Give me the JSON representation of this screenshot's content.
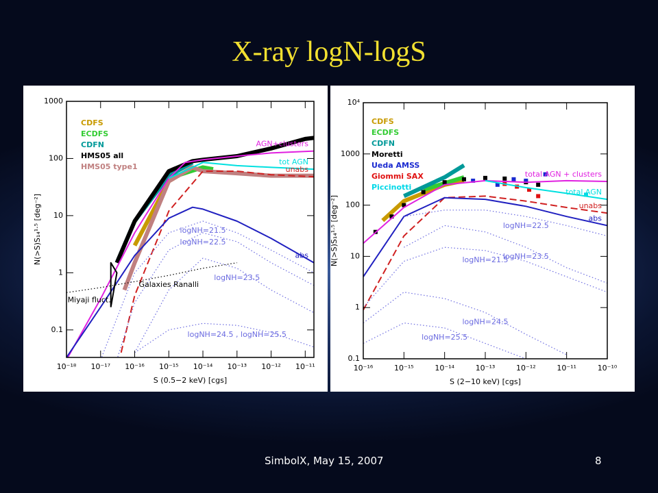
{
  "slide": {
    "title": "X-ray logN-logS",
    "footer": "SimbolX, May 15, 2007",
    "page": 8
  },
  "chart_data": [
    {
      "type": "line",
      "xlabel": "S (0.5−2 keV) [cgs]",
      "ylabel": "N(>S)S₁₄¹·⁵ [deg⁻²]",
      "xlog": true,
      "ylog": true,
      "xlim": [
        1e-18,
        1.8e-11
      ],
      "ylim": [
        0.033,
        1000
      ],
      "xticks": [
        {
          "value": 1e-18,
          "label": "10⁻¹⁸"
        },
        {
          "value": 1e-17,
          "label": "10⁻¹⁷"
        },
        {
          "value": 1e-16,
          "label": "10⁻¹⁶"
        },
        {
          "value": 1e-15,
          "label": "10⁻¹⁵"
        },
        {
          "value": 1e-14,
          "label": "10⁻¹⁴"
        },
        {
          "value": 1e-13,
          "label": "10⁻¹³"
        },
        {
          "value": 1e-12,
          "label": "10⁻¹²"
        },
        {
          "value": 1e-11,
          "label": "10⁻¹¹"
        }
      ],
      "yticks": [
        1000,
        100,
        10,
        1,
        0.1
      ],
      "series": [
        {
          "name": "CDFS",
          "color": "#c89a00",
          "style": "thick",
          "legend": true,
          "x": [
            1e-16,
            1e-15,
            5e-15
          ],
          "values": [
            3,
            40,
            70
          ]
        },
        {
          "name": "ECDFS",
          "color": "#33cc33",
          "style": "thick",
          "legend": true,
          "x": [
            1e-15,
            1e-14,
            2e-14
          ],
          "values": [
            45,
            70,
            65
          ]
        },
        {
          "name": "CDFN",
          "color": "#009999",
          "style": "thick",
          "legend": true,
          "x": [
            3e-17,
            1e-16,
            1e-15,
            5e-15
          ],
          "values": [
            1.5,
            8,
            50,
            85
          ]
        },
        {
          "name": "HMS05 all",
          "color": "#000000",
          "style": "thick",
          "legend": true,
          "x": [
            3e-17,
            1e-16,
            1e-15,
            5e-15,
            1e-14,
            1e-13,
            1e-12,
            1e-11,
            1.8e-11
          ],
          "values": [
            1.5,
            8,
            60,
            90,
            95,
            110,
            150,
            220,
            230
          ]
        },
        {
          "name": "HMS05 type1",
          "color": "#c08080",
          "style": "thick",
          "legend": true,
          "x": [
            5e-17,
            1e-16,
            1e-15,
            5e-15,
            1e-14,
            1e-13,
            1e-12,
            1.8e-11
          ],
          "values": [
            0.5,
            1.5,
            40,
            70,
            60,
            55,
            50,
            50
          ]
        },
        {
          "name": "AGN+clusters",
          "color": "#e020e0",
          "style": "solid",
          "x": [
            1e-18,
            1e-17,
            1e-16,
            1e-15,
            3e-15,
            1e-14,
            1e-13,
            1e-12,
            1.8e-11
          ],
          "values": [
            0.03,
            0.35,
            5,
            45,
            85,
            95,
            110,
            125,
            135
          ]
        },
        {
          "name": "tot AGN",
          "color": "#00e0e0",
          "style": "solid",
          "x": [
            1e-15,
            1e-14,
            1e-13,
            1e-12,
            1.8e-11
          ],
          "values": [
            45,
            85,
            75,
            70,
            65
          ]
        },
        {
          "name": "unabs",
          "color": "#d02020",
          "style": "dashed",
          "x": [
            4e-17,
            1e-16,
            1e-15,
            1e-14,
            1e-13,
            1e-12,
            1.8e-11
          ],
          "values": [
            0.04,
            0.4,
            12,
            60,
            60,
            52,
            48
          ]
        },
        {
          "name": "abs",
          "color": "#2020c0",
          "style": "solid",
          "x": [
            1e-18,
            1e-17,
            1e-16,
            1e-15,
            5e-15,
            1e-14,
            1e-13,
            1e-12,
            1.8e-11
          ],
          "values": [
            0.033,
            0.25,
            2,
            9,
            14,
            13,
            8,
            4,
            1.5
          ]
        },
        {
          "name": "logNH=21.5",
          "color": "#6a6ae0",
          "style": "dotted",
          "x": [
            1e-17,
            1e-16,
            1e-15,
            1e-14,
            1e-13,
            1e-12,
            1.8e-11
          ],
          "values": [
            0.03,
            1,
            5,
            8,
            5,
            2.5,
            1
          ]
        },
        {
          "name": "logNH=22.5",
          "color": "#6a6ae0",
          "style": "dotted",
          "x": [
            3e-17,
            1e-16,
            1e-15,
            1e-14,
            1e-13,
            1e-12,
            1.8e-11
          ],
          "values": [
            0.03,
            0.3,
            2.5,
            5,
            3.5,
            1.5,
            0.6
          ]
        },
        {
          "name": "logNH=23.5",
          "color": "#6a6ae0",
          "style": "dotted",
          "x": [
            1e-16,
            1e-15,
            1e-14,
            1e-13,
            1e-12,
            1.8e-11
          ],
          "values": [
            0.04,
            0.5,
            1.8,
            1.2,
            0.5,
            0.2
          ]
        },
        {
          "name": "logNH=24.5 , logNH=25.5",
          "color": "#6a6ae0",
          "style": "dotted",
          "x": [
            1e-16,
            1e-15,
            1e-14,
            1e-13,
            1e-12,
            1.8e-11
          ],
          "values": [
            0.04,
            0.1,
            0.13,
            0.12,
            0.09,
            0.05
          ]
        },
        {
          "name": "Galaxies Ranalli",
          "color": "#000000",
          "style": "dotted",
          "x": [
            1e-18,
            1e-17,
            1e-16,
            1e-15,
            1e-14,
            1e-13
          ],
          "values": [
            0.45,
            0.55,
            0.7,
            0.9,
            1.2,
            1.5
          ]
        },
        {
          "name": "Miyaji fluct.",
          "color": "#000000",
          "style": "solid",
          "x": [
            2e-17,
            2e-17,
            3e-17,
            2e-17
          ],
          "values": [
            0.25,
            1.5,
            1,
            0.25
          ]
        }
      ]
    },
    {
      "type": "line",
      "xlabel": "S (2−10 keV) [cgs]",
      "ylabel": "N(>S)S₁₄¹·⁵ [deg⁻²]",
      "xlog": true,
      "ylog": true,
      "xlim": [
        1e-16,
        1e-10
      ],
      "ylim": [
        0.1,
        10000
      ],
      "xticks": [
        {
          "value": 1e-16,
          "label": "10⁻¹⁶"
        },
        {
          "value": 1e-15,
          "label": "10⁻¹⁵"
        },
        {
          "value": 1e-14,
          "label": "10⁻¹⁴"
        },
        {
          "value": 1e-13,
          "label": "10⁻¹³"
        },
        {
          "value": 1e-12,
          "label": "10⁻¹²"
        },
        {
          "value": 1e-11,
          "label": "10⁻¹¹"
        },
        {
          "value": 1e-10,
          "label": "10⁻¹⁰"
        }
      ],
      "yticks": [
        {
          "value": 10000,
          "label": "10⁴"
        },
        1000,
        100,
        10,
        1,
        0.1
      ],
      "series": [
        {
          "name": "CDFS",
          "color": "#c89a00",
          "style": "thick",
          "legend": true,
          "x": [
            3e-16,
            1e-15,
            1e-14,
            3e-14
          ],
          "values": [
            50,
            120,
            250,
            300
          ]
        },
        {
          "name": "ECDFS",
          "color": "#33cc33",
          "style": "thick",
          "legend": true,
          "x": [
            3e-15,
            3e-14
          ],
          "values": [
            200,
            350
          ]
        },
        {
          "name": "CDFN",
          "color": "#009999",
          "style": "thick",
          "legend": true,
          "x": [
            1e-15,
            1e-14,
            3e-14
          ],
          "values": [
            150,
            350,
            600
          ]
        },
        {
          "name": "Moretti",
          "color": "#000000",
          "style": "points",
          "legend": true,
          "x": [
            2e-16,
            5e-16,
            1e-15,
            3e-15,
            1e-14,
            3e-14,
            1e-13,
            3e-13,
            1e-12,
            2e-12
          ],
          "values": [
            30,
            60,
            100,
            180,
            280,
            320,
            340,
            330,
            280,
            250
          ]
        },
        {
          "name": "Ueda AMSS",
          "color": "#1a2ad0",
          "style": "points",
          "legend": true,
          "x": [
            5e-14,
            2e-13,
            5e-13,
            1e-12,
            3e-12
          ],
          "values": [
            300,
            250,
            320,
            300,
            400
          ]
        },
        {
          "name": "Giommi SAX",
          "color": "#e01010",
          "style": "points",
          "legend": true,
          "x": [
            3e-13,
            6e-13,
            1.2e-12,
            2e-12
          ],
          "values": [
            260,
            230,
            200,
            150
          ]
        },
        {
          "name": "Piccinotti",
          "color": "#00d8e8",
          "style": "points",
          "legend": true,
          "x": [
            3e-11
          ],
          "values": [
            160
          ]
        },
        {
          "name": "total AGN + clusters",
          "color": "#e020e0",
          "style": "solid",
          "x": [
            1e-16,
            1e-15,
            1e-14,
            1e-13,
            1e-12,
            1e-11,
            1e-10
          ],
          "values": [
            18,
            90,
            250,
            300,
            280,
            300,
            290
          ]
        },
        {
          "name": "total AGN",
          "color": "#00e0e0",
          "style": "solid",
          "x": [
            1e-13,
            1e-12,
            1e-11,
            1e-10
          ],
          "values": [
            300,
            220,
            170,
            130
          ]
        },
        {
          "name": "unabs",
          "color": "#d02020",
          "style": "dashed",
          "x": [
            1e-16,
            1e-15,
            1e-14,
            1e-13,
            1e-12,
            1e-11,
            1e-10
          ],
          "values": [
            0.9,
            25,
            140,
            150,
            120,
            90,
            70
          ]
        },
        {
          "name": "abs",
          "color": "#2020c0",
          "style": "solid",
          "x": [
            1e-16,
            1e-15,
            1e-14,
            1e-13,
            1e-12,
            1e-11,
            1e-10
          ],
          "values": [
            4,
            60,
            140,
            130,
            95,
            60,
            40
          ]
        },
        {
          "name": "logNH=22.5",
          "color": "#6a6ae0",
          "style": "dotted",
          "x": [
            1e-15,
            1e-14,
            1e-13,
            1e-12,
            1e-11,
            1e-10
          ],
          "values": [
            60,
            80,
            80,
            60,
            40,
            25
          ]
        },
        {
          "name": "logNH=23.5",
          "color": "#6a6ae0",
          "style": "dotted",
          "x": [
            1e-15,
            1e-14,
            1e-13,
            1e-12,
            1e-11,
            1e-10
          ],
          "values": [
            15,
            40,
            30,
            15,
            6,
            3
          ]
        },
        {
          "name": "logNH=21.5",
          "color": "#6a6ae0",
          "style": "dotted",
          "x": [
            1e-16,
            1e-15,
            1e-14,
            1e-13,
            1e-12,
            1e-11,
            1e-10
          ],
          "values": [
            1,
            8,
            15,
            13,
            8,
            4,
            2
          ]
        },
        {
          "name": "logNH=24.5",
          "color": "#6a6ae0",
          "style": "dotted",
          "x": [
            1e-16,
            1e-15,
            1e-14,
            1e-13,
            1e-12,
            1e-11
          ],
          "values": [
            0.5,
            2,
            1.5,
            0.8,
            0.3,
            0.12
          ]
        },
        {
          "name": "logNH=25.5",
          "color": "#6a6ae0",
          "style": "dotted",
          "x": [
            1e-16,
            1e-15,
            1e-14,
            1e-13,
            1e-12
          ],
          "values": [
            0.2,
            0.5,
            0.4,
            0.2,
            0.1
          ]
        }
      ]
    }
  ]
}
